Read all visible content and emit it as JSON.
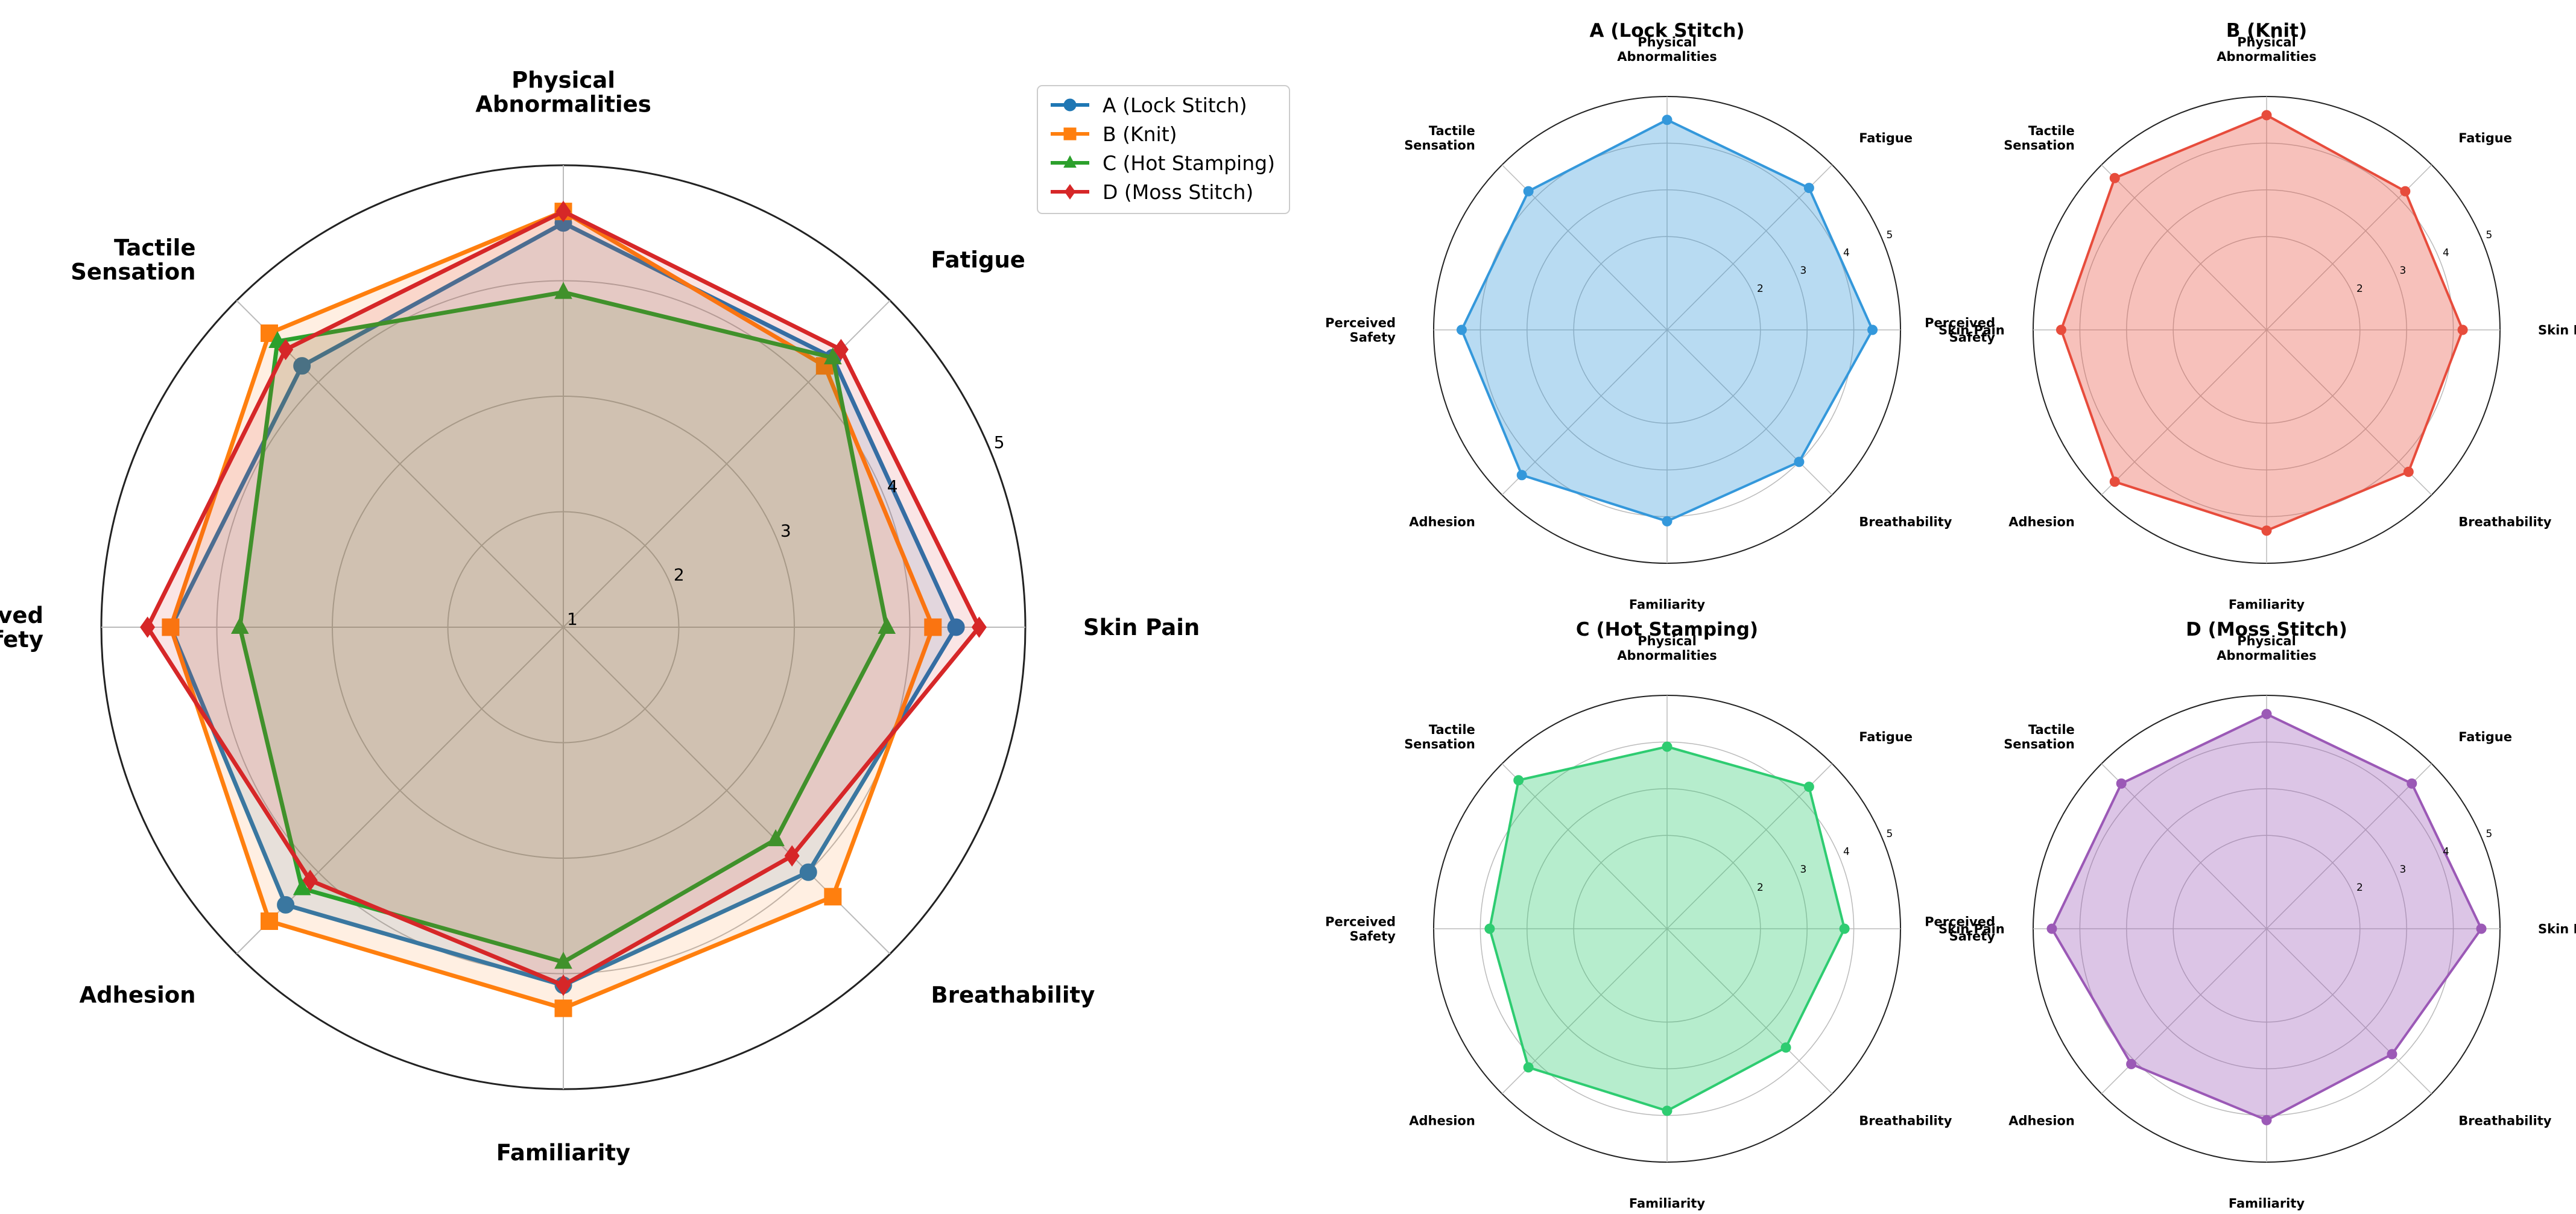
{
  "chart_data": [
    {
      "type": "radar",
      "title": "",
      "axes": [
        "Skin Pain",
        "Fatigue",
        "Physical\nAbnormalities",
        "Tactile\nSensation",
        "Perceived\nSafety",
        "Adhesion",
        "Familiarity",
        "Breathability"
      ],
      "rlim": [
        1,
        5
      ],
      "rticks": [
        1,
        2,
        3,
        4,
        5
      ],
      "grid": true,
      "legend": {
        "position": "top-right",
        "entries": [
          "A (Lock Stitch)",
          "B (Knit)",
          "C (Hot Stamping)",
          "D (Moss Stitch)"
        ]
      },
      "series": [
        {
          "name": "A (Lock Stitch)",
          "color": "#1f77b4",
          "marker": "circle",
          "values": [
            4.4,
            4.3,
            4.5,
            4.2,
            4.4,
            4.4,
            4.1,
            4.0
          ]
        },
        {
          "name": "B (Knit)",
          "color": "#ff7f0e",
          "marker": "square",
          "values": [
            4.2,
            4.2,
            4.6,
            4.6,
            4.4,
            4.6,
            4.3,
            4.3
          ]
        },
        {
          "name": "C (Hot Stamping)",
          "color": "#2ca02c",
          "marker": "triangle",
          "values": [
            3.8,
            4.3,
            3.9,
            4.5,
            3.8,
            4.2,
            3.9,
            3.6
          ]
        },
        {
          "name": "D (Moss Stitch)",
          "color": "#d62728",
          "marker": "diamond",
          "values": [
            4.6,
            4.4,
            4.6,
            4.4,
            4.6,
            4.1,
            4.1,
            3.8
          ]
        }
      ]
    },
    {
      "type": "radar",
      "title": "A (Lock Stitch)",
      "axes": [
        "Skin Pain",
        "Fatigue",
        "Physical\nAbnormalities",
        "Tactile\nSensation",
        "Perceived\nSafety",
        "Adhesion",
        "Familiarity",
        "Breathability"
      ],
      "rlim": [
        0,
        5
      ],
      "rticks": [
        2,
        3,
        4,
        5
      ],
      "grid": true,
      "color": "#3498db",
      "values": [
        4.4,
        4.3,
        4.5,
        4.2,
        4.4,
        4.4,
        4.1,
        4.0
      ]
    },
    {
      "type": "radar",
      "title": "B (Knit)",
      "axes": [
        "Skin Pain",
        "Fatigue",
        "Physical\nAbnormalities",
        "Tactile\nSensation",
        "Perceived\nSafety",
        "Adhesion",
        "Familiarity",
        "Breathability"
      ],
      "rlim": [
        0,
        5
      ],
      "rticks": [
        2,
        3,
        4,
        5
      ],
      "grid": true,
      "color": "#e74c3c",
      "values": [
        4.2,
        4.2,
        4.6,
        4.6,
        4.4,
        4.6,
        4.3,
        4.3
      ]
    },
    {
      "type": "radar",
      "title": "C (Hot Stamping)",
      "axes": [
        "Skin Pain",
        "Fatigue",
        "Physical\nAbnormalities",
        "Tactile\nSensation",
        "Perceived\nSafety",
        "Adhesion",
        "Familiarity",
        "Breathability"
      ],
      "rlim": [
        0,
        5
      ],
      "rticks": [
        2,
        3,
        4,
        5
      ],
      "grid": true,
      "color": "#2ecc71",
      "values": [
        3.8,
        4.3,
        3.9,
        4.5,
        3.8,
        4.2,
        3.9,
        3.6
      ]
    },
    {
      "type": "radar",
      "title": "D (Moss Stitch)",
      "axes": [
        "Skin Pain",
        "Fatigue",
        "Physical\nAbnormalities",
        "Tactile\nSensation",
        "Perceived\nSafety",
        "Adhesion",
        "Familiarity",
        "Breathability"
      ],
      "rlim": [
        0,
        5
      ],
      "rticks": [
        2,
        3,
        4,
        5
      ],
      "grid": true,
      "color": "#9b59b6",
      "values": [
        4.6,
        4.4,
        4.6,
        4.4,
        4.6,
        4.1,
        4.1,
        3.8
      ]
    }
  ]
}
